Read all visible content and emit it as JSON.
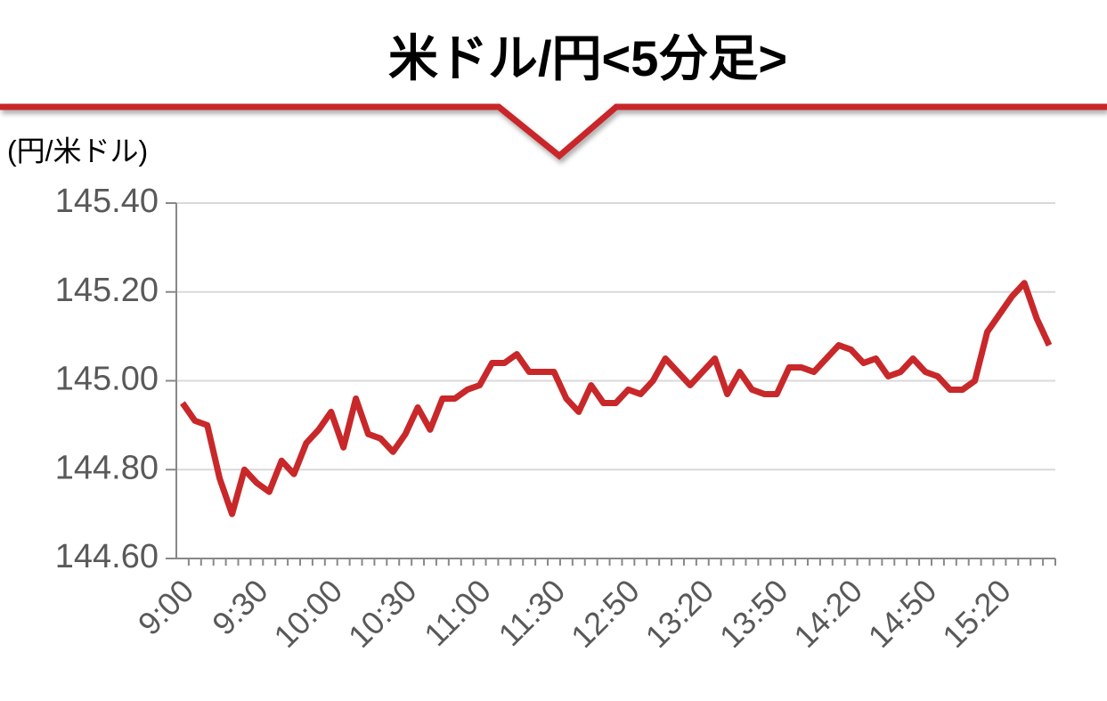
{
  "chart_data": {
    "type": "line",
    "title": "米ドル/円<5分足>",
    "y_label": "(円/米ドル)",
    "categories": [
      "9:00",
      null,
      null,
      null,
      null,
      null,
      "9:30",
      null,
      null,
      null,
      null,
      null,
      "10:00",
      null,
      null,
      null,
      null,
      null,
      "10:30",
      null,
      null,
      null,
      null,
      null,
      "11:00",
      null,
      null,
      null,
      null,
      null,
      "11:30",
      null,
      null,
      null,
      null,
      null,
      "12:50",
      null,
      null,
      null,
      null,
      null,
      "13:20",
      null,
      null,
      null,
      null,
      null,
      "13:50",
      null,
      null,
      null,
      null,
      null,
      "14:20",
      null,
      null,
      null,
      null,
      null,
      "14:50",
      null,
      null,
      null,
      null,
      null,
      "15:20",
      null,
      null,
      null,
      null
    ],
    "series": [
      {
        "color": "#c8282a",
        "values": [
          144.95,
          144.91,
          144.9,
          144.78,
          144.7,
          144.8,
          144.77,
          144.75,
          144.82,
          144.79,
          144.86,
          144.89,
          144.93,
          144.85,
          144.96,
          144.88,
          144.87,
          144.84,
          144.88,
          144.94,
          144.89,
          144.96,
          144.96,
          144.98,
          144.99,
          145.04,
          145.04,
          145.06,
          145.02,
          145.02,
          145.02,
          144.96,
          144.93,
          144.99,
          144.95,
          144.95,
          144.98,
          144.97,
          145.0,
          145.05,
          145.02,
          144.99,
          145.02,
          145.05,
          144.97,
          145.02,
          144.98,
          144.97,
          144.97,
          145.03,
          145.03,
          145.02,
          145.05,
          145.08,
          145.07,
          145.04,
          145.05,
          145.01,
          145.02,
          145.05,
          145.02,
          145.01,
          144.98,
          144.98,
          145.0,
          145.11,
          145.15,
          145.19,
          145.22,
          145.14,
          145.08
        ]
      }
    ],
    "ylim": [
      144.6,
      145.4
    ],
    "yticks": [
      {
        "value": 144.6,
        "label": "144.60"
      },
      {
        "value": 144.8,
        "label": "144.80"
      },
      {
        "value": 145.0,
        "label": "145.00"
      },
      {
        "value": 145.2,
        "label": "145.20"
      },
      {
        "value": 145.4,
        "label": "145.40"
      }
    ],
    "grid": true
  }
}
